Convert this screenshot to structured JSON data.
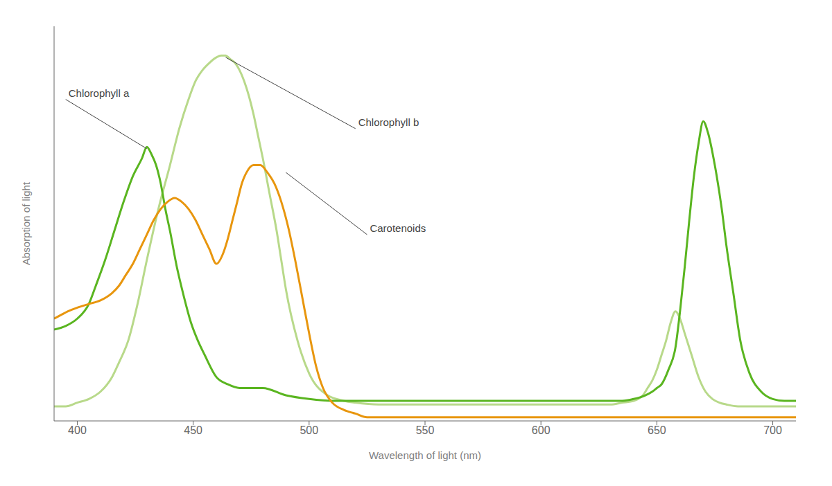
{
  "chart_data": {
    "type": "line",
    "xlabel": "Wavelength of light (nm)",
    "ylabel": "Absorption of light",
    "xlim": [
      390,
      710
    ],
    "ylim": [
      0,
      1.08
    ],
    "xticks": [
      400,
      450,
      500,
      550,
      600,
      650,
      700
    ],
    "tick_labels": "x",
    "series": [
      {
        "color": "#b8d98a",
        "x": [
          390,
          395,
          400,
          405,
          410,
          415,
          418,
          422,
          426,
          430,
          435,
          440,
          444,
          448,
          451,
          454,
          457,
          460,
          462,
          464,
          466,
          468,
          470,
          472,
          474,
          476,
          478,
          480,
          483,
          486,
          488,
          490,
          495,
          500,
          508,
          515,
          520,
          530,
          540,
          550,
          560,
          570,
          580,
          590,
          600,
          610,
          620,
          630,
          635,
          640,
          642,
          644,
          646,
          648,
          650,
          652,
          654,
          656,
          658,
          660,
          662,
          665,
          668,
          671,
          674,
          677,
          680,
          685,
          690,
          695,
          700,
          705,
          710
        ],
        "values": [
          0.04,
          0.04,
          0.05,
          0.06,
          0.08,
          0.12,
          0.16,
          0.22,
          0.32,
          0.44,
          0.58,
          0.7,
          0.8,
          0.88,
          0.93,
          0.96,
          0.98,
          0.995,
          1.0,
          1.0,
          0.99,
          0.98,
          0.96,
          0.93,
          0.89,
          0.84,
          0.78,
          0.72,
          0.62,
          0.52,
          0.44,
          0.36,
          0.22,
          0.13,
          0.07,
          0.055,
          0.05,
          0.045,
          0.045,
          0.045,
          0.045,
          0.045,
          0.045,
          0.045,
          0.045,
          0.045,
          0.045,
          0.045,
          0.05,
          0.055,
          0.06,
          0.07,
          0.09,
          0.11,
          0.14,
          0.18,
          0.22,
          0.27,
          0.3,
          0.28,
          0.24,
          0.18,
          0.12,
          0.08,
          0.06,
          0.05,
          0.045,
          0.04,
          0.04,
          0.04,
          0.04,
          0.04,
          0.04
        ]
      },
      {
        "color": "#5ab520",
        "x": [
          390,
          395,
          400,
          405,
          408,
          412,
          416,
          420,
          424,
          428,
          430,
          432,
          434,
          436,
          438,
          440,
          443,
          446,
          449,
          452,
          455,
          460,
          465,
          470,
          475,
          480,
          490,
          500,
          510,
          520,
          530,
          540,
          550,
          560,
          570,
          575,
          580,
          590,
          600,
          605,
          610,
          615,
          620,
          625,
          630,
          635,
          640,
          645,
          648,
          650,
          652,
          655,
          658,
          660,
          662,
          664,
          666,
          668,
          670,
          672,
          675,
          678,
          680,
          683,
          686,
          690,
          695,
          700,
          705,
          710
        ],
        "values": [
          0.25,
          0.26,
          0.28,
          0.32,
          0.37,
          0.44,
          0.52,
          0.6,
          0.67,
          0.72,
          0.75,
          0.73,
          0.7,
          0.65,
          0.58,
          0.52,
          0.42,
          0.34,
          0.27,
          0.22,
          0.18,
          0.12,
          0.1,
          0.09,
          0.09,
          0.09,
          0.07,
          0.06,
          0.055,
          0.055,
          0.055,
          0.055,
          0.055,
          0.055,
          0.055,
          0.055,
          0.055,
          0.055,
          0.055,
          0.055,
          0.055,
          0.055,
          0.055,
          0.055,
          0.055,
          0.055,
          0.06,
          0.07,
          0.08,
          0.09,
          0.1,
          0.14,
          0.2,
          0.3,
          0.42,
          0.55,
          0.67,
          0.76,
          0.82,
          0.79,
          0.7,
          0.58,
          0.48,
          0.35,
          0.22,
          0.13,
          0.08,
          0.06,
          0.055,
          0.055
        ]
      },
      {
        "color": "#e8960e",
        "x": [
          390,
          393,
          396,
          400,
          405,
          410,
          415,
          418,
          421,
          424,
          427,
          430,
          433,
          436,
          439,
          442,
          445,
          448,
          451,
          454,
          457,
          460,
          463,
          465,
          467,
          469,
          471,
          473,
          476,
          479,
          482,
          485,
          488,
          491,
          494,
          497,
          500,
          503,
          506,
          510,
          515,
          520,
          525,
          530,
          540,
          550,
          560,
          580,
          600,
          620,
          640,
          660,
          680,
          700,
          710
        ],
        "values": [
          0.28,
          0.29,
          0.3,
          0.31,
          0.32,
          0.33,
          0.35,
          0.37,
          0.4,
          0.43,
          0.47,
          0.51,
          0.55,
          0.58,
          0.6,
          0.61,
          0.6,
          0.58,
          0.55,
          0.51,
          0.47,
          0.43,
          0.46,
          0.5,
          0.55,
          0.6,
          0.65,
          0.68,
          0.7,
          0.7,
          0.68,
          0.65,
          0.6,
          0.53,
          0.44,
          0.34,
          0.24,
          0.15,
          0.09,
          0.05,
          0.03,
          0.02,
          0.01,
          0.01,
          0.01,
          0.01,
          0.01,
          0.01,
          0.01,
          0.01,
          0.01,
          0.01,
          0.01,
          0.01,
          0.01
        ]
      }
    ],
    "annotations": [
      {
        "text": "Chlorophyll a",
        "x": 430,
        "y": 0.745,
        "text_x": 395,
        "text_y": 0.88,
        "color": "#444444"
      },
      {
        "text": "Chlorophyll b",
        "x": 464,
        "y": 0.995,
        "text_x": 520,
        "text_y": 0.8,
        "color": "#444444"
      },
      {
        "text": "Carotenoids",
        "x": 490,
        "y": 0.68,
        "text_x": 525,
        "text_y": 0.51,
        "color": "#444444"
      }
    ]
  }
}
